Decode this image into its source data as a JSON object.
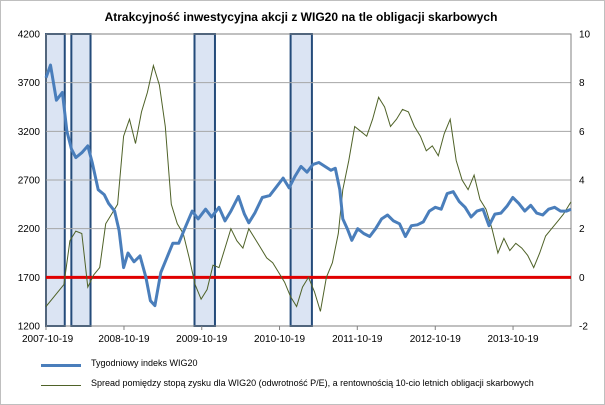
{
  "chart_data": {
    "type": "line",
    "title": "Atrakcyjność  inwestycyjna  akcji  z WIG20 na tle obligacji  skarbowych",
    "x_ticks": [
      "2007-10-19",
      "2008-10-19",
      "2009-10-19",
      "2010-10-19",
      "2011-10-19",
      "2012-10-19",
      "2013-10-19"
    ],
    "x_range": [
      "2007-10-19",
      "2014-07-18"
    ],
    "y_left": {
      "min": 1200,
      "max": 4200,
      "ticks": [
        1200,
        1700,
        2200,
        2700,
        3200,
        3700,
        4200
      ]
    },
    "y_right": {
      "min": -2,
      "max": 10,
      "ticks": [
        -2,
        0,
        2,
        4,
        6,
        8,
        10
      ]
    },
    "gridlines": true,
    "zero_line_right_axis": 0,
    "colors": {
      "wig20": "#4a7ebb",
      "spread": "#4f6228",
      "zero_line": "#e00000",
      "shade_fill": "#dbe4f3",
      "shade_border": "#244b7a",
      "grid": "#a6a6a6"
    },
    "shaded_periods": [
      [
        "2007-10-19",
        "2008-01-15"
      ],
      [
        "2008-02-15",
        "2008-05-15"
      ],
      [
        "2009-09-15",
        "2009-12-20"
      ],
      [
        "2010-12-10",
        "2011-03-20"
      ]
    ],
    "legend": {
      "position": "bottom"
    },
    "series": [
      {
        "name": "Tygodniowy indeks WIG20",
        "axis": "left",
        "points": [
          [
            "2007-10-19",
            3750
          ],
          [
            "2007-11-09",
            3880
          ],
          [
            "2007-12-07",
            3520
          ],
          [
            "2008-01-04",
            3600
          ],
          [
            "2008-01-25",
            3200
          ],
          [
            "2008-02-15",
            3020
          ],
          [
            "2008-03-07",
            2930
          ],
          [
            "2008-04-04",
            2980
          ],
          [
            "2008-05-02",
            3050
          ],
          [
            "2008-05-23",
            2880
          ],
          [
            "2008-06-20",
            2600
          ],
          [
            "2008-07-18",
            2550
          ],
          [
            "2008-08-08",
            2460
          ],
          [
            "2008-09-05",
            2380
          ],
          [
            "2008-09-26",
            2180
          ],
          [
            "2008-10-17",
            1800
          ],
          [
            "2008-11-07",
            1950
          ],
          [
            "2008-12-05",
            1860
          ],
          [
            "2009-01-02",
            1920
          ],
          [
            "2009-01-30",
            1700
          ],
          [
            "2009-02-20",
            1460
          ],
          [
            "2009-03-13",
            1410
          ],
          [
            "2009-04-10",
            1750
          ],
          [
            "2009-05-08",
            1900
          ],
          [
            "2009-06-05",
            2050
          ],
          [
            "2009-07-03",
            2050
          ],
          [
            "2009-07-31",
            2200
          ],
          [
            "2009-09-04",
            2380
          ],
          [
            "2009-10-02",
            2300
          ],
          [
            "2009-11-06",
            2400
          ],
          [
            "2009-12-04",
            2320
          ],
          [
            "2010-01-08",
            2420
          ],
          [
            "2010-02-05",
            2280
          ],
          [
            "2010-03-05",
            2380
          ],
          [
            "2010-04-09",
            2530
          ],
          [
            "2010-05-07",
            2350
          ],
          [
            "2010-05-28",
            2260
          ],
          [
            "2010-06-25",
            2360
          ],
          [
            "2010-07-30",
            2520
          ],
          [
            "2010-09-03",
            2540
          ],
          [
            "2010-10-01",
            2620
          ],
          [
            "2010-11-05",
            2720
          ],
          [
            "2010-12-03",
            2620
          ],
          [
            "2010-12-31",
            2740
          ],
          [
            "2011-01-28",
            2840
          ],
          [
            "2011-02-25",
            2780
          ],
          [
            "2011-03-25",
            2860
          ],
          [
            "2011-04-22",
            2880
          ],
          [
            "2011-05-20",
            2840
          ],
          [
            "2011-06-17",
            2800
          ],
          [
            "2011-07-08",
            2820
          ],
          [
            "2011-07-29",
            2600
          ],
          [
            "2011-08-12",
            2300
          ],
          [
            "2011-09-02",
            2200
          ],
          [
            "2011-09-23",
            2080
          ],
          [
            "2011-10-21",
            2200
          ],
          [
            "2011-11-18",
            2150
          ],
          [
            "2011-12-16",
            2120
          ],
          [
            "2012-01-13",
            2200
          ],
          [
            "2012-02-10",
            2300
          ],
          [
            "2012-03-09",
            2340
          ],
          [
            "2012-04-06",
            2280
          ],
          [
            "2012-05-04",
            2250
          ],
          [
            "2012-06-01",
            2120
          ],
          [
            "2012-06-29",
            2230
          ],
          [
            "2012-07-27",
            2240
          ],
          [
            "2012-08-24",
            2270
          ],
          [
            "2012-09-21",
            2380
          ],
          [
            "2012-10-19",
            2420
          ],
          [
            "2012-11-16",
            2400
          ],
          [
            "2012-12-14",
            2560
          ],
          [
            "2013-01-11",
            2580
          ],
          [
            "2013-02-08",
            2480
          ],
          [
            "2013-03-08",
            2420
          ],
          [
            "2013-04-05",
            2320
          ],
          [
            "2013-05-03",
            2380
          ],
          [
            "2013-05-31",
            2400
          ],
          [
            "2013-06-28",
            2230
          ],
          [
            "2013-07-26",
            2350
          ],
          [
            "2013-08-23",
            2360
          ],
          [
            "2013-09-20",
            2430
          ],
          [
            "2013-10-18",
            2520
          ],
          [
            "2013-11-15",
            2460
          ],
          [
            "2013-12-13",
            2380
          ],
          [
            "2014-01-10",
            2440
          ],
          [
            "2014-02-07",
            2360
          ],
          [
            "2014-03-07",
            2340
          ],
          [
            "2014-04-04",
            2400
          ],
          [
            "2014-05-02",
            2420
          ],
          [
            "2014-05-30",
            2380
          ],
          [
            "2014-06-27",
            2380
          ],
          [
            "2014-07-18",
            2400
          ]
        ]
      },
      {
        "name": "Spread pomiędzy stopą zysku dla WIG20 (odwrotność P/E), a rentownością 10-cio letnich obligacji skarbowych",
        "axis": "right",
        "points": [
          [
            "2007-10-19",
            -1.2
          ],
          [
            "2007-11-16",
            -0.9
          ],
          [
            "2007-12-14",
            -0.6
          ],
          [
            "2008-01-11",
            -0.3
          ],
          [
            "2008-02-08",
            1.5
          ],
          [
            "2008-03-07",
            1.9
          ],
          [
            "2008-04-04",
            1.8
          ],
          [
            "2008-05-02",
            -0.4
          ],
          [
            "2008-05-30",
            0.1
          ],
          [
            "2008-06-27",
            0.4
          ],
          [
            "2008-07-25",
            2.2
          ],
          [
            "2008-08-22",
            2.6
          ],
          [
            "2008-09-19",
            3.0
          ],
          [
            "2008-10-17",
            5.8
          ],
          [
            "2008-11-14",
            6.5
          ],
          [
            "2008-12-12",
            5.5
          ],
          [
            "2009-01-09",
            6.8
          ],
          [
            "2009-02-06",
            7.6
          ],
          [
            "2009-03-06",
            8.7
          ],
          [
            "2009-04-03",
            7.9
          ],
          [
            "2009-05-01",
            6.2
          ],
          [
            "2009-05-29",
            3.0
          ],
          [
            "2009-06-26",
            2.2
          ],
          [
            "2009-07-24",
            1.8
          ],
          [
            "2009-08-21",
            0.8
          ],
          [
            "2009-09-18",
            -0.3
          ],
          [
            "2009-10-16",
            -0.9
          ],
          [
            "2009-11-13",
            -0.5
          ],
          [
            "2009-12-11",
            0.5
          ],
          [
            "2010-01-08",
            0.4
          ],
          [
            "2010-02-05",
            1.2
          ],
          [
            "2010-03-05",
            2.0
          ],
          [
            "2010-04-02",
            1.5
          ],
          [
            "2010-04-30",
            1.2
          ],
          [
            "2010-05-28",
            2.0
          ],
          [
            "2010-06-25",
            1.6
          ],
          [
            "2010-07-23",
            1.2
          ],
          [
            "2010-08-20",
            0.8
          ],
          [
            "2010-09-17",
            0.6
          ],
          [
            "2010-10-15",
            0.2
          ],
          [
            "2010-11-12",
            -0.2
          ],
          [
            "2010-12-10",
            -0.8
          ],
          [
            "2011-01-07",
            -1.2
          ],
          [
            "2011-02-04",
            -0.4
          ],
          [
            "2011-03-04",
            0.0
          ],
          [
            "2011-04-01",
            -0.6
          ],
          [
            "2011-04-29",
            -1.4
          ],
          [
            "2011-05-27",
            0.0
          ],
          [
            "2011-06-24",
            0.6
          ],
          [
            "2011-07-22",
            1.8
          ],
          [
            "2011-08-12",
            3.6
          ],
          [
            "2011-09-09",
            4.8
          ],
          [
            "2011-10-07",
            6.2
          ],
          [
            "2011-11-04",
            6.0
          ],
          [
            "2011-12-02",
            5.8
          ],
          [
            "2011-12-30",
            6.5
          ],
          [
            "2012-01-27",
            7.4
          ],
          [
            "2012-02-24",
            7.0
          ],
          [
            "2012-03-23",
            6.2
          ],
          [
            "2012-04-20",
            6.5
          ],
          [
            "2012-05-18",
            6.9
          ],
          [
            "2012-06-15",
            6.8
          ],
          [
            "2012-07-13",
            6.2
          ],
          [
            "2012-08-10",
            5.8
          ],
          [
            "2012-09-07",
            5.2
          ],
          [
            "2012-10-05",
            5.4
          ],
          [
            "2012-11-02",
            5.0
          ],
          [
            "2012-11-30",
            5.9
          ],
          [
            "2012-12-28",
            6.5
          ],
          [
            "2013-01-25",
            4.8
          ],
          [
            "2013-02-22",
            4.0
          ],
          [
            "2013-03-22",
            3.6
          ],
          [
            "2013-04-19",
            4.2
          ],
          [
            "2013-05-17",
            3.2
          ],
          [
            "2013-06-14",
            2.8
          ],
          [
            "2013-07-12",
            2.0
          ],
          [
            "2013-08-09",
            1.0
          ],
          [
            "2013-09-06",
            1.6
          ],
          [
            "2013-10-04",
            1.1
          ],
          [
            "2013-11-01",
            1.4
          ],
          [
            "2013-11-29",
            1.2
          ],
          [
            "2013-12-27",
            0.9
          ],
          [
            "2014-01-24",
            0.4
          ],
          [
            "2014-02-21",
            1.0
          ],
          [
            "2014-03-21",
            1.7
          ],
          [
            "2014-04-18",
            2.0
          ],
          [
            "2014-05-16",
            2.3
          ],
          [
            "2014-06-13",
            2.6
          ],
          [
            "2014-07-11",
            3.0
          ],
          [
            "2014-07-18",
            3.1
          ]
        ]
      }
    ]
  }
}
